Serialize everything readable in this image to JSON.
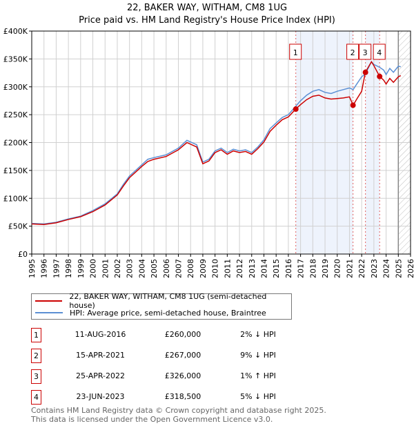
{
  "chart_data": {
    "type": "line",
    "title": "22, BAKER WAY, WITHAM, CM8 1UG",
    "subtitle": "Price paid vs. HM Land Registry's House Price Index (HPI)",
    "xlim": [
      1995,
      2026
    ],
    "ylim": [
      0,
      400000
    ],
    "yticks": [
      {
        "v": 0,
        "label": "£0"
      },
      {
        "v": 50000,
        "label": "£50K"
      },
      {
        "v": 100000,
        "label": "£100K"
      },
      {
        "v": 150000,
        "label": "£150K"
      },
      {
        "v": 200000,
        "label": "£200K"
      },
      {
        "v": 250000,
        "label": "£250K"
      },
      {
        "v": 300000,
        "label": "£300K"
      },
      {
        "v": 350000,
        "label": "£350K"
      },
      {
        "v": 400000,
        "label": "£400K"
      }
    ],
    "xticks": [
      "1995",
      "1996",
      "1997",
      "1998",
      "1999",
      "2000",
      "2001",
      "2002",
      "2003",
      "2004",
      "2005",
      "2006",
      "2007",
      "2008",
      "2009",
      "2010",
      "2011",
      "2012",
      "2013",
      "2014",
      "2015",
      "2016",
      "2017",
      "2018",
      "2019",
      "2020",
      "2021",
      "2022",
      "2023",
      "2024",
      "2025",
      "2026"
    ],
    "series": [
      {
        "name": "22, BAKER WAY, WITHAM, CM8 1UG (semi-detached house)",
        "color": "#cc0000",
        "x": [
          1995,
          1996,
          1997,
          1998,
          1999,
          2000,
          2001,
          2002,
          2002.5,
          2003,
          2003.5,
          2004,
          2004.5,
          2005,
          2006,
          2007,
          2007.7,
          2008.5,
          2009,
          2009.5,
          2010,
          2010.5,
          2011,
          2011.5,
          2012,
          2012.5,
          2013,
          2013.5,
          2014,
          2014.5,
          2015,
          2015.5,
          2016,
          2016.6,
          2017,
          2017.5,
          2018,
          2018.5,
          2019,
          2019.5,
          2020,
          2020.5,
          2021,
          2021.3,
          2021.6,
          2022,
          2022.3,
          2022.8,
          2023,
          2023.47,
          2023.8,
          2024,
          2024.3,
          2024.6,
          2025,
          2025.2
        ],
        "y": [
          54000,
          53000,
          56000,
          62000,
          67000,
          76000,
          88000,
          106000,
          122000,
          137000,
          147000,
          157000,
          166000,
          170000,
          175000,
          187000,
          200000,
          192000,
          162000,
          167000,
          182000,
          187000,
          179000,
          185000,
          182000,
          184000,
          179000,
          189000,
          201000,
          220000,
          231000,
          241000,
          246000,
          260000,
          268000,
          277000,
          283000,
          285000,
          280000,
          278000,
          279000,
          280000,
          282000,
          267000,
          278000,
          292000,
          326000,
          345000,
          338000,
          318500,
          312000,
          305000,
          315000,
          308000,
          318000,
          320000
        ]
      },
      {
        "name": "HPI: Average price, semi-detached house, Braintree",
        "color": "#5b8fd4",
        "x": [
          1995,
          1996,
          1997,
          1998,
          1999,
          2000,
          2001,
          2002,
          2002.5,
          2003,
          2003.5,
          2004,
          2004.5,
          2005,
          2006,
          2007,
          2007.7,
          2008.5,
          2009,
          2009.5,
          2010,
          2010.5,
          2011,
          2011.5,
          2012,
          2012.5,
          2013,
          2013.5,
          2014,
          2014.5,
          2015,
          2015.5,
          2016,
          2016.6,
          2017,
          2017.5,
          2018,
          2018.5,
          2019,
          2019.5,
          2020,
          2020.5,
          2021,
          2021.3,
          2021.6,
          2022,
          2022.3,
          2022.8,
          2023,
          2023.47,
          2023.8,
          2024,
          2024.3,
          2024.6,
          2025,
          2025.2
        ],
        "y": [
          55000,
          54000,
          57000,
          63000,
          68000,
          78000,
          90000,
          108000,
          125000,
          140000,
          150000,
          160000,
          170000,
          173000,
          178000,
          190000,
          204000,
          196000,
          165000,
          170000,
          185000,
          190000,
          182000,
          188000,
          185000,
          187000,
          182000,
          192000,
          205000,
          225000,
          235000,
          245000,
          250000,
          265000,
          275000,
          285000,
          292000,
          295000,
          290000,
          288000,
          292000,
          295000,
          298000,
          295000,
          305000,
          318000,
          323000,
          345000,
          340000,
          335000,
          330000,
          322000,
          333000,
          326000,
          337000,
          336000
        ]
      }
    ],
    "sales": [
      {
        "label": "1",
        "x": 2016.61,
        "y": 260000
      },
      {
        "label": "2",
        "x": 2021.29,
        "y": 267000
      },
      {
        "label": "3",
        "x": 2022.31,
        "y": 326000
      },
      {
        "label": "4",
        "x": 2023.47,
        "y": 318500
      }
    ],
    "shaded_ranges": [
      [
        2016.61,
        2021.29
      ],
      [
        2022.31,
        2023.47
      ]
    ],
    "forecast_from": 2025.0,
    "grid": true
  },
  "legend": {
    "items": [
      {
        "label": "22, BAKER WAY, WITHAM, CM8 1UG (semi-detached house)",
        "color": "#cc0000"
      },
      {
        "label": "HPI: Average price, semi-detached house, Braintree",
        "color": "#5b8fd4"
      }
    ]
  },
  "transactions": [
    {
      "num": "1",
      "date": "11-AUG-2016",
      "price": "£260,000",
      "hpi": "2% ↓ HPI"
    },
    {
      "num": "2",
      "date": "15-APR-2021",
      "price": "£267,000",
      "hpi": "9% ↓ HPI"
    },
    {
      "num": "3",
      "date": "25-APR-2022",
      "price": "£326,000",
      "hpi": "1% ↑ HPI"
    },
    {
      "num": "4",
      "date": "23-JUN-2023",
      "price": "£318,500",
      "hpi": "5% ↓ HPI"
    }
  ],
  "footer": {
    "line1": "Contains HM Land Registry data © Crown copyright and database right 2025.",
    "line2": "This data is licensed under the Open Government Licence v3.0."
  }
}
